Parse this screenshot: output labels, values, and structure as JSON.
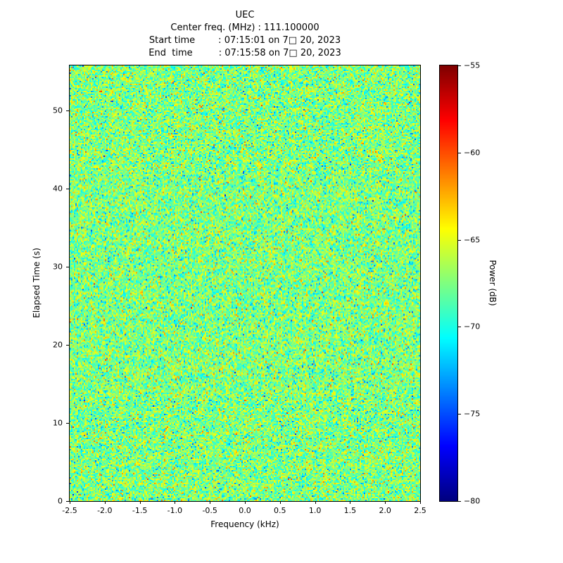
{
  "chart_data": {
    "type": "heatmap",
    "title": "UEC",
    "line_center": "Center freq. (MHz) : 111.100000",
    "line_start": "Start time        : 07:15:01 on 7□ 20, 2023",
    "line_end": "End  time         : 07:15:58 on 7□ 20, 2023",
    "xlabel": "Frequency (kHz)",
    "ylabel": "Elapsed Time (s)",
    "xlim": [
      -2.5,
      2.5
    ],
    "ylim": [
      0,
      55.8
    ],
    "xticks": [
      -2.5,
      -2.0,
      -1.5,
      -1.0,
      -0.5,
      0.0,
      0.5,
      1.0,
      1.5,
      2.0,
      2.5
    ],
    "xtick_labels": [
      "-2.5",
      "-2.0",
      "-1.5",
      "-1.0",
      "-0.5",
      "0.0",
      "0.5",
      "1.0",
      "1.5",
      "2.0",
      "2.5"
    ],
    "yticks": [
      0,
      10,
      20,
      30,
      40,
      50
    ],
    "ytick_labels": [
      "0",
      "10",
      "20",
      "30",
      "40",
      "50"
    ],
    "grid": false,
    "colorbar": {
      "label": "Power (dB)",
      "colormap": "jet",
      "vmin": -80,
      "vmax": -55,
      "ticks": [
        -55,
        -60,
        -65,
        -70,
        -75,
        -80
      ],
      "tick_labels": [
        "−55",
        "−60",
        "−65",
        "−70",
        "−75",
        "−80"
      ]
    },
    "noise": {
      "description": "broadband noise floor, gaussian speckle",
      "mean_db": -67.5,
      "std_db": 2.3,
      "seed": 42,
      "cols": 249,
      "rows": 310
    }
  }
}
